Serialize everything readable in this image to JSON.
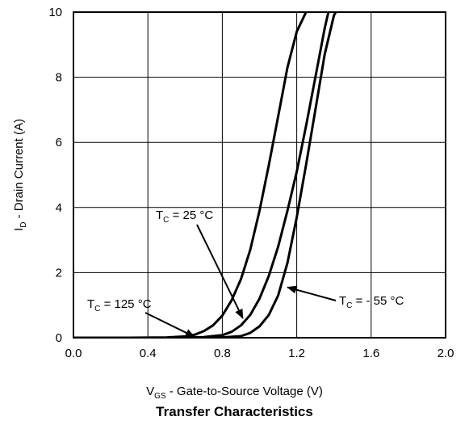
{
  "chart_data": {
    "type": "line",
    "title": "Transfer Characteristics",
    "xlabel": {
      "main": "V",
      "sub": "GS",
      "rest": " - Gate-to-Source Voltage (V)"
    },
    "ylabel": {
      "main": "I",
      "sub": "D",
      "rest": " - Drain Current (A)"
    },
    "xlim": [
      0.0,
      2.0
    ],
    "ylim": [
      0,
      10
    ],
    "x_ticks": [
      "0.0",
      "0.4",
      "0.8",
      "1.2",
      "1.6",
      "2.0"
    ],
    "y_ticks": [
      "0",
      "2",
      "4",
      "6",
      "8",
      "10"
    ],
    "grid": true,
    "series": [
      {
        "name": {
          "main": "T",
          "sub": "C",
          "rest": " = 125 °C"
        },
        "points": [
          [
            0.0,
            0.0
          ],
          [
            0.3,
            0.0
          ],
          [
            0.5,
            0.01
          ],
          [
            0.6,
            0.04
          ],
          [
            0.65,
            0.09
          ],
          [
            0.7,
            0.2
          ],
          [
            0.75,
            0.38
          ],
          [
            0.8,
            0.68
          ],
          [
            0.85,
            1.15
          ],
          [
            0.9,
            1.8
          ],
          [
            0.95,
            2.7
          ],
          [
            1.0,
            3.9
          ],
          [
            1.05,
            5.3
          ],
          [
            1.1,
            6.8
          ],
          [
            1.15,
            8.3
          ],
          [
            1.2,
            9.4
          ],
          [
            1.25,
            10.0
          ]
        ]
      },
      {
        "name": {
          "main": "T",
          "sub": "C",
          "rest": " = 25 °C"
        },
        "points": [
          [
            0.0,
            0.0
          ],
          [
            0.5,
            0.0
          ],
          [
            0.7,
            0.02
          ],
          [
            0.8,
            0.08
          ],
          [
            0.85,
            0.18
          ],
          [
            0.9,
            0.38
          ],
          [
            0.95,
            0.7
          ],
          [
            1.0,
            1.2
          ],
          [
            1.05,
            1.9
          ],
          [
            1.1,
            2.8
          ],
          [
            1.15,
            3.9
          ],
          [
            1.2,
            5.1
          ],
          [
            1.25,
            6.5
          ],
          [
            1.3,
            8.0
          ],
          [
            1.35,
            9.5
          ],
          [
            1.37,
            10.0
          ]
        ]
      },
      {
        "name": {
          "main": "T",
          "sub": "C",
          "rest": " = - 55 °C"
        },
        "points": [
          [
            0.0,
            0.0
          ],
          [
            0.6,
            0.0
          ],
          [
            0.8,
            0.01
          ],
          [
            0.9,
            0.05
          ],
          [
            0.95,
            0.15
          ],
          [
            1.0,
            0.35
          ],
          [
            1.05,
            0.7
          ],
          [
            1.1,
            1.3
          ],
          [
            1.15,
            2.3
          ],
          [
            1.2,
            3.7
          ],
          [
            1.25,
            5.3
          ],
          [
            1.3,
            7.0
          ],
          [
            1.35,
            8.7
          ],
          [
            1.4,
            9.9
          ],
          [
            1.41,
            10.0
          ]
        ]
      }
    ],
    "annotations": [
      {
        "series": 0,
        "at": [
          0.65,
          0.03
        ]
      },
      {
        "series": 1,
        "at": [
          0.91,
          0.6
        ]
      },
      {
        "series": 2,
        "at": [
          1.15,
          1.55
        ]
      }
    ]
  }
}
